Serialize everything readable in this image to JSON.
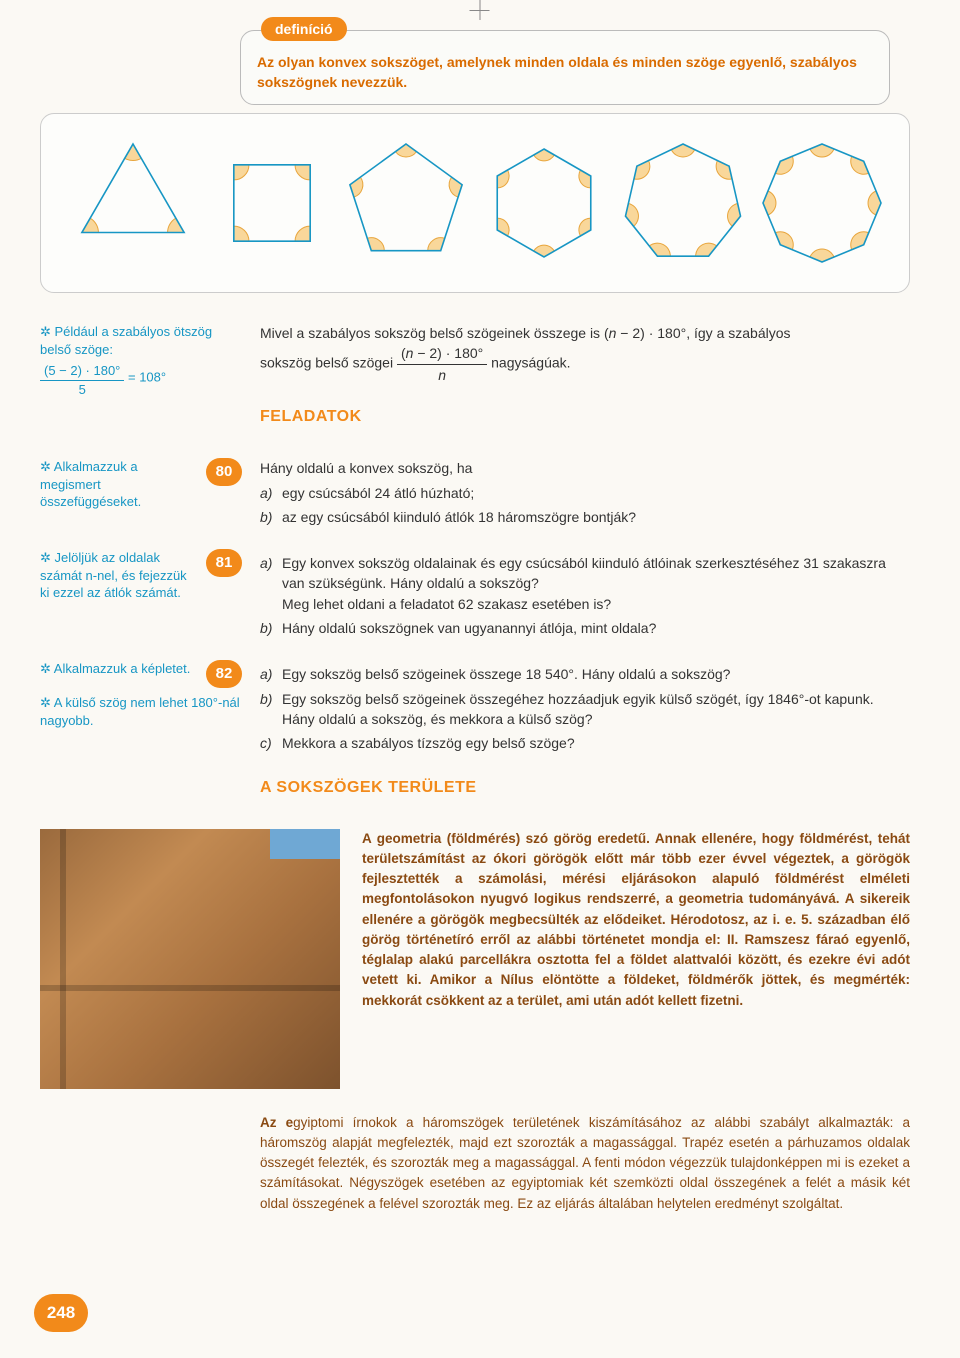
{
  "page_number": "248",
  "definition": {
    "badge": "definíció",
    "text": "Az olyan konvex sokszöget, amelynek minden oldala és minden szöge egyenlő, szabályos sokszögnek nevezzük."
  },
  "shapes": {
    "stroke": "#1796c4",
    "arc_fill": "#f9d79a",
    "arc_stroke": "#e8a53c",
    "polygons": [
      3,
      4,
      5,
      6,
      7,
      8
    ]
  },
  "intro": {
    "margin_label": "Például a szabályos ötszög belső szöge:",
    "margin_formula_num": "(5 − 2) · 180°",
    "margin_formula_den": "5",
    "margin_formula_eq": "= 108°",
    "body_l1a": "Mivel a szabályos sokszög belső szögeinek összege is  (",
    "body_l1b": " − 2) · 180°, így a szabályos",
    "body_l2a": "sokszög belső szögei ",
    "body_frac_num_a": "(",
    "body_frac_num_b": " − 2) · 180°",
    "body_frac_den": "n",
    "body_l2b": " nagyságúak.",
    "n_var": "n"
  },
  "feladatok_heading": "FELADATOK",
  "ex80": {
    "num": "80",
    "margin": "Alkalmazzuk a megismert összefüggéseket.",
    "body": "Hány oldalú a konvex sokszög, ha",
    "a": "egy csúcsából 24 átló húzható;",
    "b": "az egy csúcsából kiinduló átlók 18 háromszögre bontják?"
  },
  "ex81": {
    "num": "81",
    "margin": "Jelöljük az oldalak számát n-nel, és fejezzük ki ezzel az átlók számát.",
    "a1": "Egy konvex sokszög oldalainak és egy csúcsából kiinduló átlóinak szerkesztéséhez 31 szakaszra van szükségünk. Hány oldalú a sokszög?",
    "a2": "Meg lehet oldani a feladatot 62 szakasz esetében is?",
    "b": "Hány oldalú sokszögnek van ugyanannyi átlója, mint oldala?"
  },
  "ex82": {
    "num": "82",
    "margin1": "Alkalmazzuk a képletet.",
    "margin2": "A külső szög nem lehet 180°-nál nagyobb.",
    "a": "Egy sokszög belső szögeinek összege 18 540°. Hány oldalú a sokszög?",
    "b": "Egy sokszög belső szögeinek összegéhez hozzáadjuk egyik külső szögét, így 1846°-ot kapunk. Hány oldalú a sokszög, és mekkora a külső szög?",
    "c": "Mekkora a szabályos tízszög egy belső szöge?"
  },
  "area_heading": "A SOKSZÖGEK TERÜLETE",
  "history1": "A geometria (földmérés) szó görög eredetű. Annak ellenére, hogy földmérést, tehát területszámítást az ókori görögök előtt már több ezer évvel végeztek, a görögök fejlesztették a számolási, mérési eljárásokon alapuló földmérést elméleti megfontolásokon nyugvó logikus rendszerré, a geometria tudományává. A sikereik ellenére a görögök megbecsülték az elődeiket. Hérodotosz, az i. e. 5. században élő görög történetíró erről az alábbi történetet mondja el: II. Ramszesz fáraó egyenlő, téglalap alakú parcellákra osztotta fel a földet alattvalói között, és ezekre évi adót vetett ki. Amikor a Nílus elöntötte a földeket, földmérők jöttek, és megmérték: mekkorát csökkent az a terület, ami után adót kellett fizetni.",
  "history2_bold": "Az e",
  "history2": "gyiptomi írnokok a háromszögek területének kiszámításához az alábbi szabályt alkalmazták: a háromszög alapját megfelezték, majd ezt szorozták a magassággal. Trapéz esetén a párhuzamos oldalak összegét felezték, és szorozták meg a magassággal. A fenti módon végezzük tulajdonképpen mi is ezeket a számításokat. Négyszögek esetében az egyiptomiak két szemközti oldal összegének a felét a másik két oldal összegének a felével szorozták meg. Ez az eljárás általában helytelen eredményt szolgáltat."
}
